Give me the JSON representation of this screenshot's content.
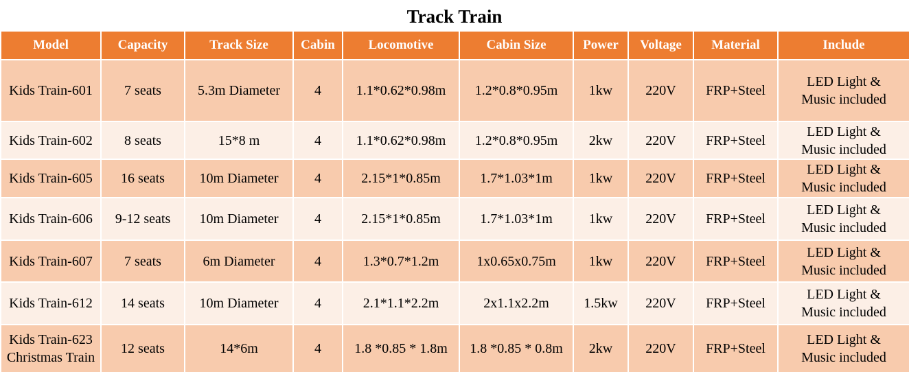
{
  "title": "Track Train",
  "headers": [
    "Model",
    "Capacity",
    "Track Size",
    "Cabin",
    "Locomotive",
    "Cabin Size",
    "Power",
    "Voltage",
    "Material",
    "Include"
  ],
  "rows": [
    {
      "model": "Kids Train-601",
      "capacity": "7 seats",
      "track_size": "5.3m Diameter",
      "cabin": "4",
      "locomotive": "1.1*0.62*0.98m",
      "cabin_size": "1.2*0.8*0.95m",
      "power": "1kw",
      "voltage": "220V",
      "material": "FRP+Steel",
      "include": "LED Light &\nMusic included"
    },
    {
      "model": "Kids Train-602",
      "capacity": "8 seats",
      "track_size": "15*8 m",
      "cabin": "4",
      "locomotive": "1.1*0.62*0.98m",
      "cabin_size": "1.2*0.8*0.95m",
      "power": "2kw",
      "voltage": "220V",
      "material": "FRP+Steel",
      "include": "LED Light &\nMusic included"
    },
    {
      "model": "Kids Train-605",
      "capacity": "16 seats",
      "track_size": "10m Diameter",
      "cabin": "4",
      "locomotive": "2.15*1*0.85m",
      "cabin_size": "1.7*1.03*1m",
      "power": "1kw",
      "voltage": "220V",
      "material": "FRP+Steel",
      "include": "LED Light &\nMusic included"
    },
    {
      "model": "Kids Train-606",
      "capacity": "9-12 seats",
      "track_size": "10m Diameter",
      "cabin": "4",
      "locomotive": "2.15*1*0.85m",
      "cabin_size": "1.7*1.03*1m",
      "power": "1kw",
      "voltage": "220V",
      "material": "FRP+Steel",
      "include": "LED Light &\nMusic included"
    },
    {
      "model": "Kids Train-607",
      "capacity": "7 seats",
      "track_size": "6m Diameter",
      "cabin": "4",
      "locomotive": "1.3*0.7*1.2m",
      "cabin_size": "1x0.65x0.75m",
      "power": "1kw",
      "voltage": "220V",
      "material": "FRP+Steel",
      "include": "LED Light &\nMusic included"
    },
    {
      "model": "Kids Train-612",
      "capacity": "14 seats",
      "track_size": "10m Diameter",
      "cabin": "4",
      "locomotive": "2.1*1.1*2.2m",
      "cabin_size": "2x1.1x2.2m",
      "power": "1.5kw",
      "voltage": "220V",
      "material": "FRP+Steel",
      "include": "LED Light &\nMusic included"
    },
    {
      "model": "Kids Train-623\nChristmas Train",
      "capacity": "12 seats",
      "track_size": "14*6m",
      "cabin": "4",
      "locomotive": "1.8 *0.85 * 1.8m",
      "cabin_size": "1.8 *0.85 * 0.8m",
      "power": "2kw",
      "voltage": "220V",
      "material": "FRP+Steel",
      "include": "LED Light &\nMusic included"
    }
  ],
  "colors": {
    "header_bg": "#ed7d31",
    "header_text": "#ffffff",
    "row_odd_bg": "#f8cbad",
    "row_even_bg": "#fcefe6",
    "grid": "#ffffff"
  }
}
